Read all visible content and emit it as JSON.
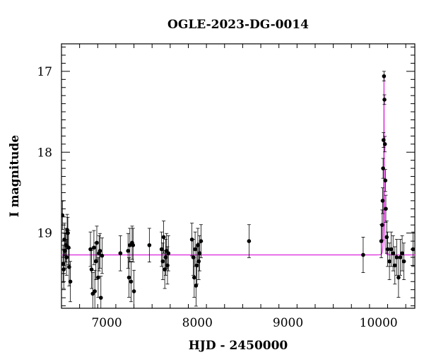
{
  "chart_data": {
    "type": "scatter",
    "title": "OGLE-2023-DG-0014",
    "xlabel": "HJD - 2450000",
    "ylabel": "I magnitude",
    "xlim": [
      6500,
      10400
    ],
    "ylim": [
      19.93,
      16.66
    ],
    "y_inverted": true,
    "x_ticks": [
      7000,
      8000,
      9000,
      10000
    ],
    "x_tick_labels": [
      "7000",
      "8000",
      "9000",
      "10000"
    ],
    "y_ticks": [
      17,
      18,
      19
    ],
    "y_tick_labels": [
      "17",
      "18",
      "19"
    ],
    "grid": false,
    "colors": {
      "points": "#000000",
      "model": "#e040e0",
      "frame": "#000000"
    },
    "model": {
      "name": "",
      "baseline_mag": 19.27,
      "peak_time": 10060,
      "peak_mag": 17.06,
      "timescale_days": 8
    },
    "series": [
      {
        "x": [
          6510,
          6518,
          6525,
          6532,
          6540,
          6548,
          6556,
          6563,
          6570,
          6578,
          6585,
          6598,
          6820,
          6832,
          6845,
          6858,
          6868,
          6880,
          6890,
          6905,
          6915,
          6925,
          6935,
          6948,
          7150,
          7235,
          7245,
          7255,
          7268,
          7280,
          7290,
          7300,
          7470,
          7605,
          7618,
          7628,
          7640,
          7650,
          7660,
          7670,
          7680,
          7940,
          7955,
          7965,
          7975,
          7985,
          7995,
          8005,
          8015,
          8025,
          8040,
          8570,
          9830,
          10030,
          10040,
          10045,
          10050,
          10055,
          10060,
          10065,
          10070,
          10075,
          10080,
          10090,
          10100,
          10120,
          10140,
          10160,
          10180,
          10200,
          10220,
          10240,
          10260,
          10280,
          10380
        ],
        "y": [
          18.78,
          19.38,
          19.45,
          19.08,
          19.22,
          19.15,
          19.3,
          18.96,
          19.0,
          19.18,
          19.42,
          19.6,
          19.2,
          19.45,
          19.75,
          19.18,
          19.72,
          19.35,
          19.12,
          19.55,
          19.25,
          19.22,
          19.8,
          19.28,
          19.25,
          19.22,
          19.55,
          19.15,
          19.6,
          19.12,
          19.15,
          19.72,
          19.15,
          19.2,
          19.35,
          19.05,
          19.45,
          19.3,
          19.22,
          19.4,
          19.25,
          19.08,
          19.3,
          19.55,
          19.2,
          19.65,
          19.4,
          19.15,
          19.35,
          19.25,
          19.1,
          19.1,
          19.27,
          19.1,
          18.9,
          18.6,
          18.2,
          17.85,
          17.06,
          17.35,
          17.9,
          18.35,
          18.7,
          19.05,
          19.2,
          19.35,
          19.2,
          19.25,
          19.4,
          19.3,
          19.55,
          19.3,
          19.25,
          19.35,
          19.2
        ]
      }
    ]
  }
}
